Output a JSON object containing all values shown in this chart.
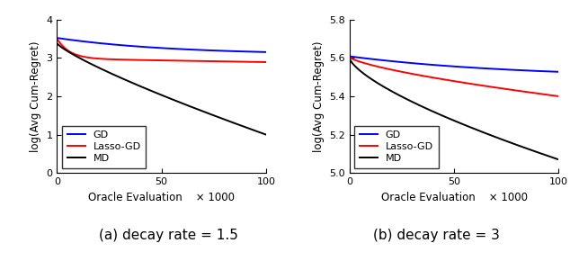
{
  "subplot1": {
    "title": "(a) decay rate = 1.5",
    "ylabel": "log(Avg Cum-Regret)",
    "xlabel": "Oracle Evaluation    × 1000",
    "xlim": [
      0,
      100
    ],
    "ylim": [
      0,
      4
    ],
    "yticks": [
      0,
      1,
      2,
      3,
      4
    ],
    "xticks": [
      0,
      50,
      100
    ],
    "gd_start": 3.52,
    "gd_end": 3.08,
    "lasso_start": 3.5,
    "lasso_dip": 2.98,
    "lasso_end": 2.8,
    "md_start": 3.38,
    "md_end": 1.0
  },
  "subplot2": {
    "title": "(b) decay rate = 3",
    "ylabel": "log(Avg Cum-Regret)",
    "xlabel": "Oracle Evaluation    × 1000",
    "xlim": [
      0,
      100
    ],
    "ylim": [
      5.0,
      5.8
    ],
    "yticks": [
      5.0,
      5.2,
      5.4,
      5.6,
      5.8
    ],
    "xticks": [
      0,
      50,
      100
    ],
    "gd_start": 5.608,
    "gd_end": 5.495,
    "lasso_start": 5.605,
    "lasso_end": 5.4,
    "md_start": 5.598,
    "md_end": 5.07
  },
  "colors": {
    "GD": "#0000FF",
    "Lasso-GD": "#FF0000",
    "MD": "#000000"
  },
  "linewidth": 1.4,
  "legend_fontsize": 8,
  "axis_fontsize": 8.5,
  "tick_fontsize": 8,
  "caption_fontsize": 11
}
